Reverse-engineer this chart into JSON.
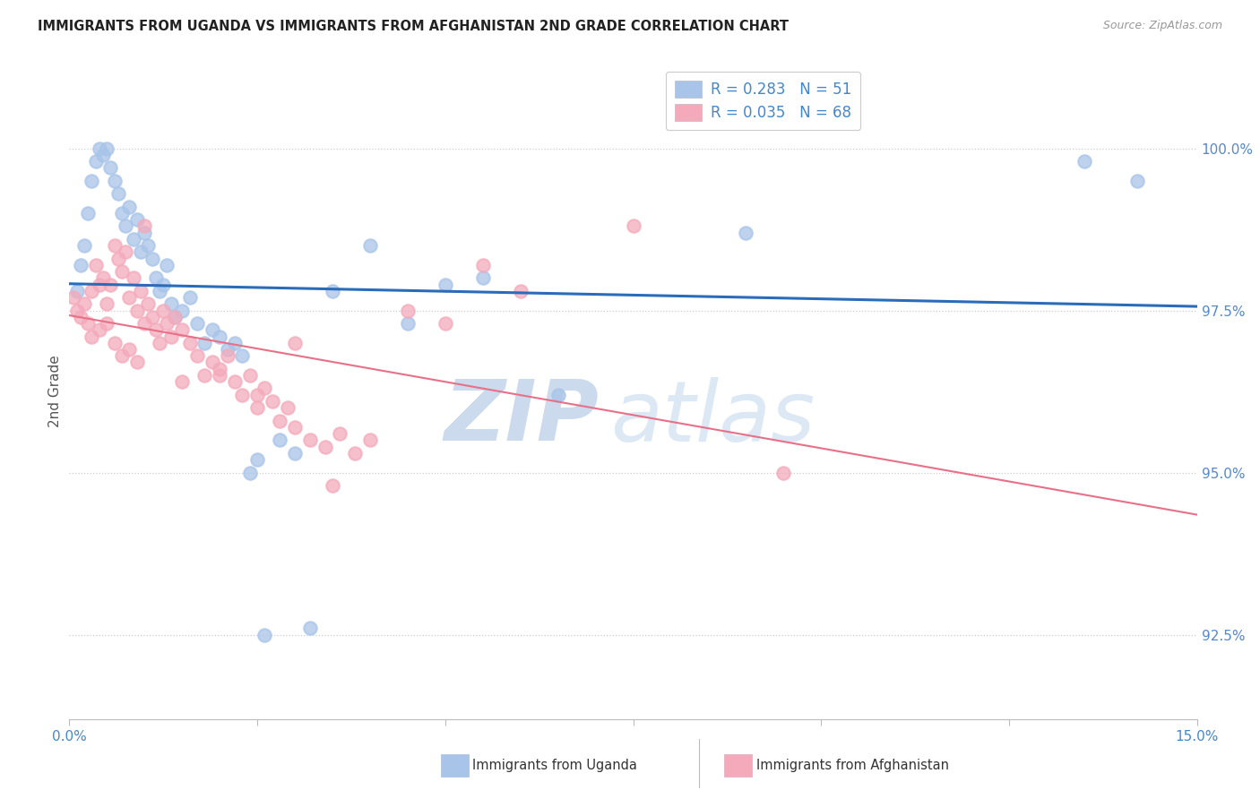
{
  "title": "IMMIGRANTS FROM UGANDA VS IMMIGRANTS FROM AFGHANISTAN 2ND GRADE CORRELATION CHART",
  "source": "Source: ZipAtlas.com",
  "ylabel": "2nd Grade",
  "ytick_values": [
    92.5,
    95.0,
    97.5,
    100.0
  ],
  "xlim": [
    0.0,
    15.0
  ],
  "ylim": [
    91.2,
    101.3
  ],
  "legend_R_uganda": "R = 0.283",
  "legend_N_uganda": "N = 51",
  "legend_R_afghan": "R = 0.035",
  "legend_N_afghan": "N = 68",
  "uganda_color": "#a8c4e8",
  "afghan_color": "#f4aabb",
  "uganda_line_color": "#2b6cba",
  "afghan_line_color": "#e87088",
  "uganda_scatter_x": [
    0.1,
    0.15,
    0.2,
    0.25,
    0.3,
    0.35,
    0.4,
    0.45,
    0.5,
    0.55,
    0.6,
    0.65,
    0.7,
    0.75,
    0.8,
    0.85,
    0.9,
    0.95,
    1.0,
    1.05,
    1.1,
    1.15,
    1.2,
    1.25,
    1.3,
    1.35,
    1.4,
    1.5,
    1.6,
    1.7,
    1.8,
    1.9,
    2.0,
    2.1,
    2.2,
    2.3,
    2.4,
    2.5,
    2.6,
    2.8,
    3.0,
    3.2,
    3.5,
    4.0,
    4.5,
    5.0,
    5.5,
    6.5,
    9.0,
    13.5,
    14.2
  ],
  "uganda_scatter_y": [
    97.8,
    98.2,
    98.5,
    99.0,
    99.5,
    99.8,
    100.0,
    99.9,
    100.0,
    99.7,
    99.5,
    99.3,
    99.0,
    98.8,
    99.1,
    98.6,
    98.9,
    98.4,
    98.7,
    98.5,
    98.3,
    98.0,
    97.8,
    97.9,
    98.2,
    97.6,
    97.4,
    97.5,
    97.7,
    97.3,
    97.0,
    97.2,
    97.1,
    96.9,
    97.0,
    96.8,
    95.0,
    95.2,
    92.5,
    95.5,
    95.3,
    92.6,
    97.8,
    98.5,
    97.3,
    97.9,
    98.0,
    96.2,
    98.7,
    99.8,
    99.5
  ],
  "afghan_scatter_x": [
    0.05,
    0.1,
    0.15,
    0.2,
    0.25,
    0.3,
    0.35,
    0.4,
    0.45,
    0.5,
    0.55,
    0.6,
    0.65,
    0.7,
    0.75,
    0.8,
    0.85,
    0.9,
    0.95,
    1.0,
    1.05,
    1.1,
    1.15,
    1.2,
    1.25,
    1.3,
    1.35,
    1.4,
    1.5,
    1.6,
    1.7,
    1.8,
    1.9,
    2.0,
    2.1,
    2.2,
    2.3,
    2.4,
    2.5,
    2.6,
    2.7,
    2.8,
    2.9,
    3.0,
    3.2,
    3.4,
    3.6,
    3.8,
    4.0,
    4.5,
    5.0,
    5.5,
    6.0,
    7.5,
    0.3,
    0.4,
    0.5,
    0.6,
    0.7,
    0.8,
    0.9,
    1.0,
    1.5,
    2.0,
    2.5,
    3.0,
    3.5,
    9.5
  ],
  "afghan_scatter_y": [
    97.7,
    97.5,
    97.4,
    97.6,
    97.3,
    97.8,
    98.2,
    97.9,
    98.0,
    97.6,
    97.9,
    98.5,
    98.3,
    98.1,
    98.4,
    97.7,
    98.0,
    97.5,
    97.8,
    97.3,
    97.6,
    97.4,
    97.2,
    97.0,
    97.5,
    97.3,
    97.1,
    97.4,
    97.2,
    97.0,
    96.8,
    96.5,
    96.7,
    96.6,
    96.8,
    96.4,
    96.2,
    96.5,
    96.0,
    96.3,
    96.1,
    95.8,
    96.0,
    95.7,
    95.5,
    95.4,
    95.6,
    95.3,
    95.5,
    97.5,
    97.3,
    98.2,
    97.8,
    98.8,
    97.1,
    97.2,
    97.3,
    97.0,
    96.8,
    96.9,
    96.7,
    98.8,
    96.4,
    96.5,
    96.2,
    97.0,
    94.8,
    95.0
  ],
  "watermark_zip": "ZIP",
  "watermark_atlas": "atlas",
  "background_color": "#ffffff",
  "grid_color": "#cccccc",
  "title_color": "#222222",
  "blue_color": "#4488cc",
  "ytick_color": "#5588cc"
}
